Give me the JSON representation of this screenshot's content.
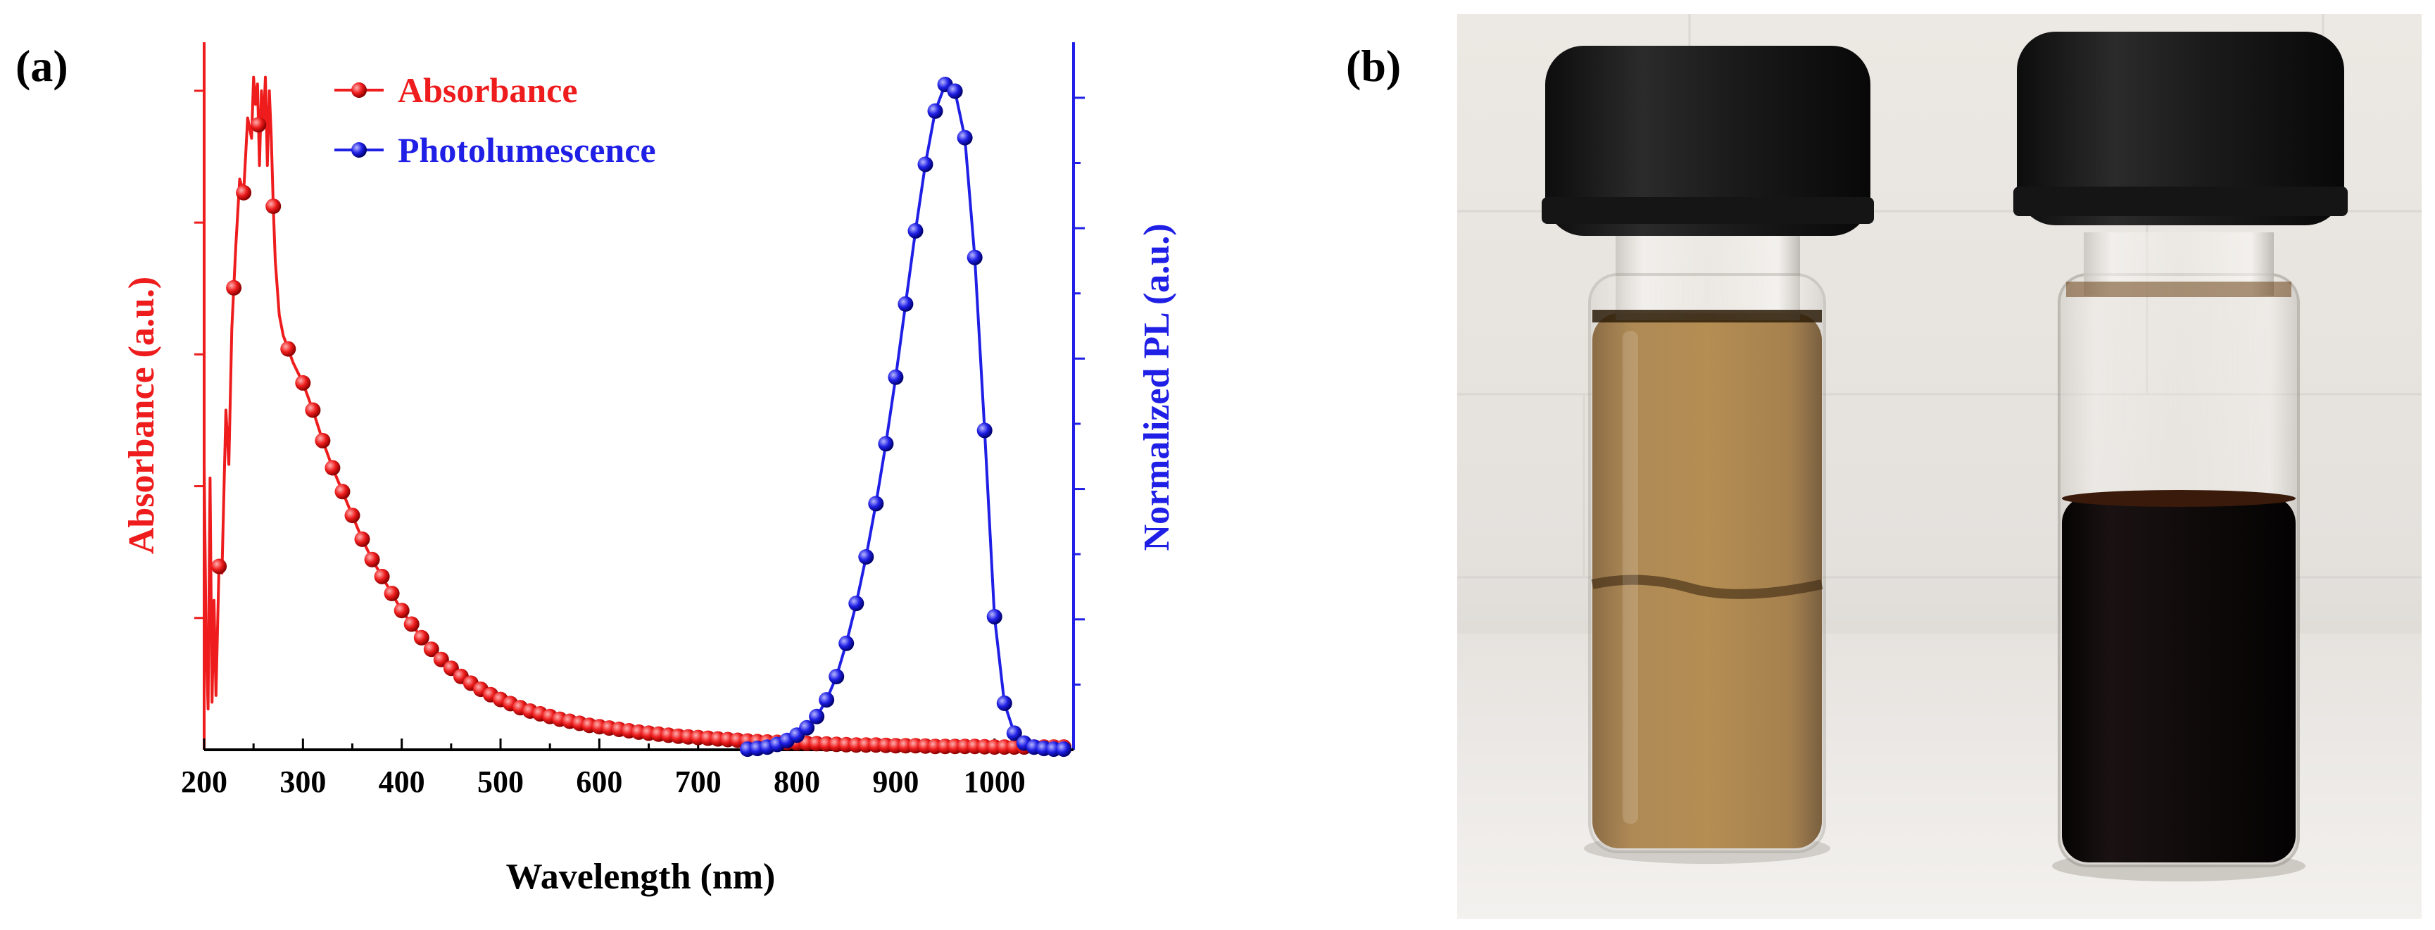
{
  "panels": {
    "a": "(a)",
    "b": "(b)"
  },
  "colors": {
    "absorbance": "#ee1c1c",
    "photoluminescence": "#1f1fe6",
    "axis": "#000000"
  },
  "chart_data": {
    "type": "line",
    "title": "",
    "xlabel": "Wavelength (nm)",
    "ylabel": "Absorbance (a.u.)",
    "y2label": "Normalized PL (a.u.)",
    "xlim": [
      200,
      1080
    ],
    "x_ticks": [
      200,
      300,
      400,
      500,
      600,
      700,
      800,
      900,
      1000
    ],
    "ylim": [
      0,
      1.0
    ],
    "y2lim": [
      0,
      1.0
    ],
    "grid": false,
    "legend": "top-center",
    "series": [
      {
        "name": "Absorbance",
        "axis": "left",
        "color": "#ee1c1c",
        "x": [
          200,
          202,
          204,
          206,
          208,
          210,
          212,
          215,
          218,
          222,
          225,
          228,
          232,
          236,
          240,
          244,
          248,
          250,
          252,
          254,
          256,
          258,
          260,
          262,
          264,
          266,
          268,
          270,
          272,
          276,
          280,
          285,
          290,
          300,
          310,
          320,
          330,
          340,
          350,
          360,
          370,
          380,
          390,
          400,
          410,
          420,
          430,
          440,
          450,
          460,
          470,
          480,
          490,
          500,
          510,
          520,
          530,
          540,
          550,
          560,
          570,
          580,
          590,
          600,
          620,
          640,
          660,
          680,
          700,
          720,
          740,
          760,
          780,
          800,
          820,
          840,
          860,
          880,
          900,
          920,
          940,
          960,
          980,
          1000,
          1020,
          1040,
          1060
        ],
        "values": [
          0.42,
          0.16,
          0.06,
          0.4,
          0.07,
          0.22,
          0.08,
          0.27,
          0.26,
          0.5,
          0.42,
          0.62,
          0.74,
          0.84,
          0.82,
          0.93,
          0.9,
          0.99,
          0.95,
          0.98,
          0.86,
          0.97,
          0.92,
          0.99,
          0.86,
          0.97,
          0.9,
          0.8,
          0.72,
          0.64,
          0.61,
          0.59,
          0.57,
          0.54,
          0.5,
          0.455,
          0.415,
          0.38,
          0.345,
          0.31,
          0.28,
          0.255,
          0.23,
          0.205,
          0.185,
          0.165,
          0.148,
          0.133,
          0.12,
          0.108,
          0.098,
          0.089,
          0.081,
          0.074,
          0.068,
          0.062,
          0.057,
          0.053,
          0.049,
          0.045,
          0.042,
          0.039,
          0.036,
          0.034,
          0.03,
          0.026,
          0.023,
          0.02,
          0.018,
          0.016,
          0.014,
          0.012,
          0.011,
          0.01,
          0.009,
          0.008,
          0.007,
          0.007,
          0.006,
          0.006,
          0.005,
          0.005,
          0.005,
          0.004,
          0.004,
          0.004,
          0.004
        ],
        "markers": [
          215,
          230,
          240,
          255,
          270,
          285,
          300,
          310,
          320,
          330,
          340,
          350,
          360,
          370,
          380,
          390,
          400,
          410,
          420,
          430,
          440,
          450,
          460,
          470,
          480,
          490,
          500,
          510,
          520,
          530,
          540,
          550,
          560,
          570,
          580,
          590,
          600,
          610,
          620,
          630,
          640,
          650,
          660,
          670,
          680,
          690,
          700,
          710,
          720,
          730,
          740,
          750,
          760,
          770,
          780,
          790,
          800,
          810,
          820,
          830,
          840,
          850,
          860,
          870,
          880,
          890,
          900,
          910,
          920,
          930,
          940,
          950,
          960,
          970,
          980,
          990,
          1000,
          1010,
          1020,
          1030,
          1040,
          1050,
          1060,
          1070
        ]
      },
      {
        "name": "Photolumescence",
        "axis": "right",
        "color": "#1f1fe6",
        "x": [
          750,
          760,
          770,
          780,
          790,
          800,
          810,
          820,
          830,
          840,
          850,
          860,
          870,
          880,
          890,
          900,
          910,
          920,
          930,
          940,
          950,
          960,
          970,
          980,
          990,
          1000,
          1010,
          1020,
          1030,
          1040,
          1050,
          1060,
          1070
        ],
        "values": [
          0.001,
          0.002,
          0.004,
          0.008,
          0.014,
          0.022,
          0.033,
          0.05,
          0.075,
          0.11,
          0.16,
          0.22,
          0.29,
          0.37,
          0.46,
          0.56,
          0.67,
          0.78,
          0.88,
          0.96,
          1.0,
          0.99,
          0.92,
          0.74,
          0.48,
          0.2,
          0.07,
          0.025,
          0.01,
          0.004,
          0.002,
          0.001,
          0.001
        ],
        "markers": [
          750,
          760,
          770,
          780,
          790,
          800,
          810,
          820,
          830,
          840,
          850,
          860,
          870,
          880,
          890,
          900,
          910,
          920,
          930,
          940,
          950,
          960,
          970,
          980,
          990,
          1000,
          1010,
          1020,
          1030,
          1040,
          1050,
          1060,
          1070
        ]
      }
    ]
  },
  "photo": {
    "left_vial_liquid": "#8c5a16",
    "right_vial_liquid": "#120c0c",
    "cap_color": "#1a1a1a",
    "wall_color": "#e9e6e2"
  }
}
